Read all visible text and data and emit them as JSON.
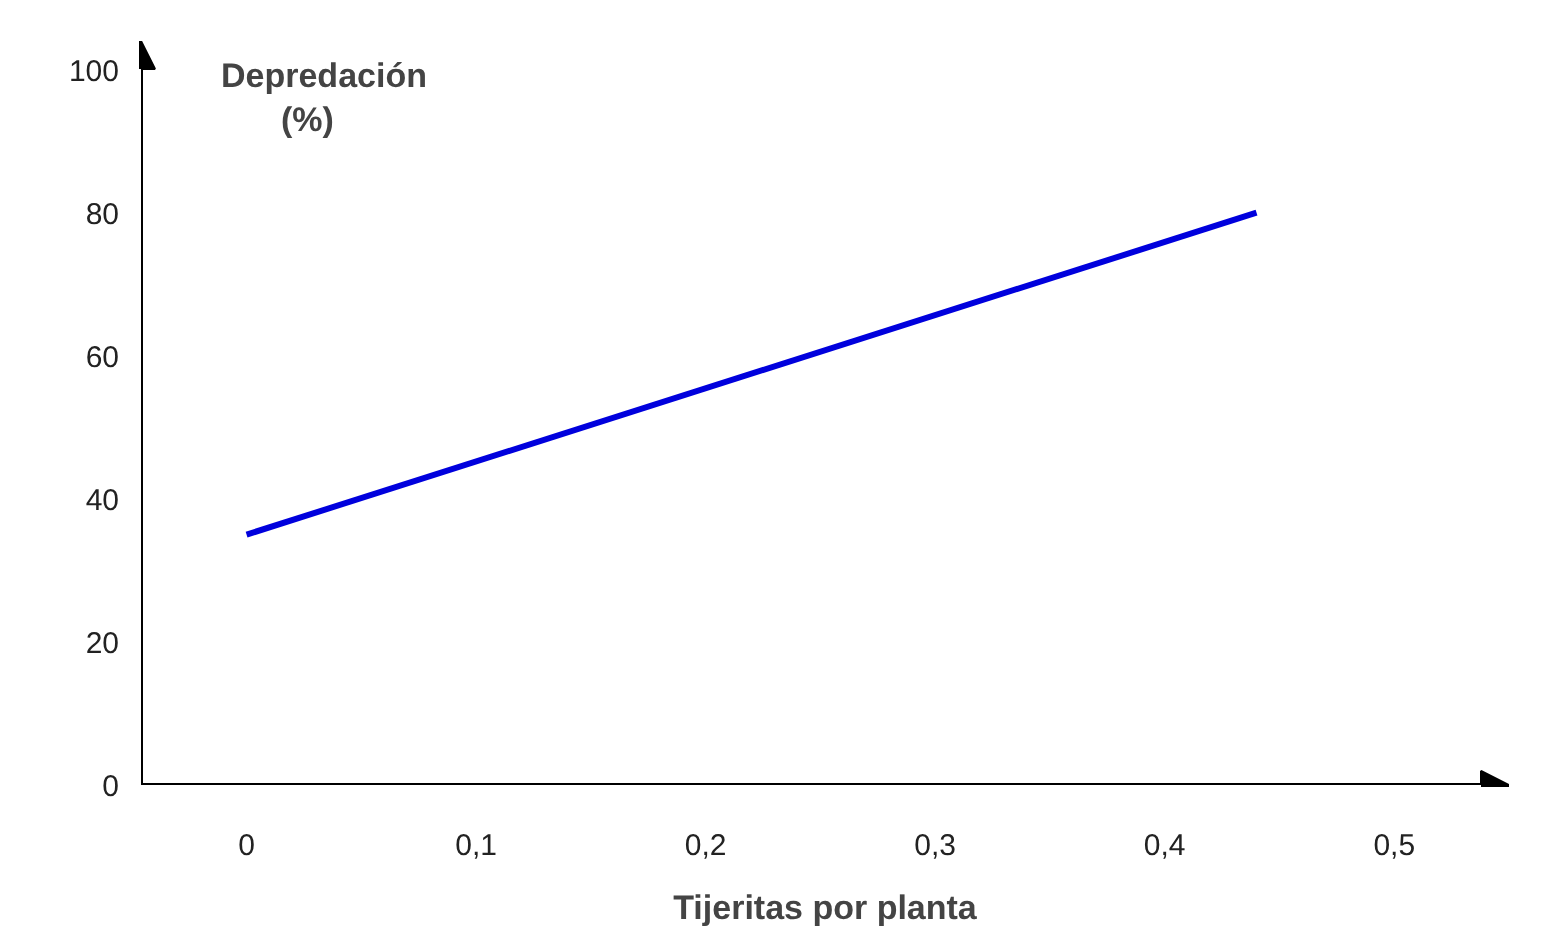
{
  "chart_data": {
    "type": "line",
    "xlabel": "Tijeritas por planta",
    "ylabel": "Depredación\n(%)",
    "x": [
      0,
      0.44
    ],
    "series": [
      {
        "color": "#0000dd",
        "values": [
          35,
          80
        ]
      }
    ],
    "xlim": [
      -0.046,
      0.55
    ],
    "ylim": [
      0,
      104
    ],
    "xticks": [
      0,
      {
        "value": 0.1,
        "label": "0,1"
      },
      {
        "value": 0.2,
        "label": "0,2"
      },
      {
        "value": 0.3,
        "label": "0,3"
      },
      {
        "value": 0.4,
        "label": "0,4"
      },
      {
        "value": 0.5,
        "label": "0,5"
      }
    ],
    "yticks": [
      0,
      20,
      40,
      60,
      80,
      100
    ],
    "grid": false,
    "marker": "none",
    "line_style": "solid"
  }
}
